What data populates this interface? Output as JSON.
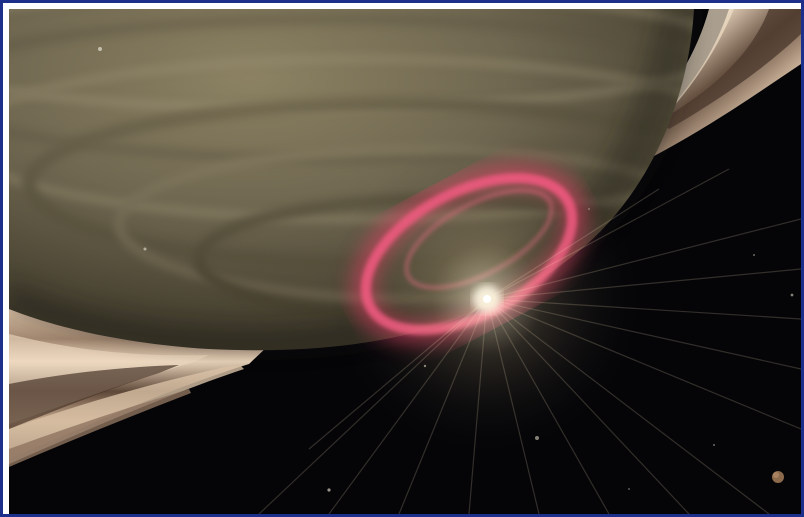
{
  "image": {
    "subject": "saturn-south-pole-aurora",
    "colors": {
      "frame_border": "#1c2f8a",
      "space": "#050508",
      "planet_light": "#8f8567",
      "planet_dark": "#3a3526",
      "aurora": "#ff3d6e",
      "ring_light": "#e6cdb2",
      "ring_dark": "#3b2c22",
      "sun_glow": "#fff2d0"
    }
  }
}
